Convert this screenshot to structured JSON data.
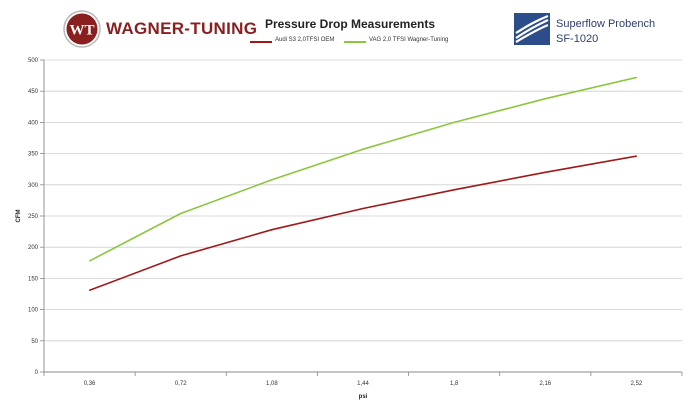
{
  "header": {
    "brand_left": "WAGNER-TUNING",
    "brand_right_line1": "Superflow Probench",
    "brand_right_line2": "SF-1020",
    "logo_monogram": "WT"
  },
  "chart_data": {
    "type": "line",
    "title": "Pressure Drop Measurements",
    "xlabel": "psi",
    "ylabel": "CFM",
    "categories": [
      "0,36",
      "0,72",
      "1,08",
      "1,44",
      "1,8",
      "2,16",
      "2,52"
    ],
    "y_ticks": [
      "0",
      "50",
      "100",
      "150",
      "200",
      "250",
      "300",
      "350",
      "400",
      "450",
      "500"
    ],
    "ylim": [
      0,
      500
    ],
    "grid": true,
    "legend_position": "top",
    "series": [
      {
        "name": "Audi S3 2,0TFSI OEM",
        "color": "#a01818",
        "values": [
          131,
          186,
          228,
          262,
          292,
          320,
          346
        ]
      },
      {
        "name": "VAG 2,0 TFSI  Wagner-Tuning",
        "color": "#8cc63f",
        "values": [
          178,
          254,
          308,
          357,
          400,
          438,
          472
        ]
      }
    ]
  }
}
